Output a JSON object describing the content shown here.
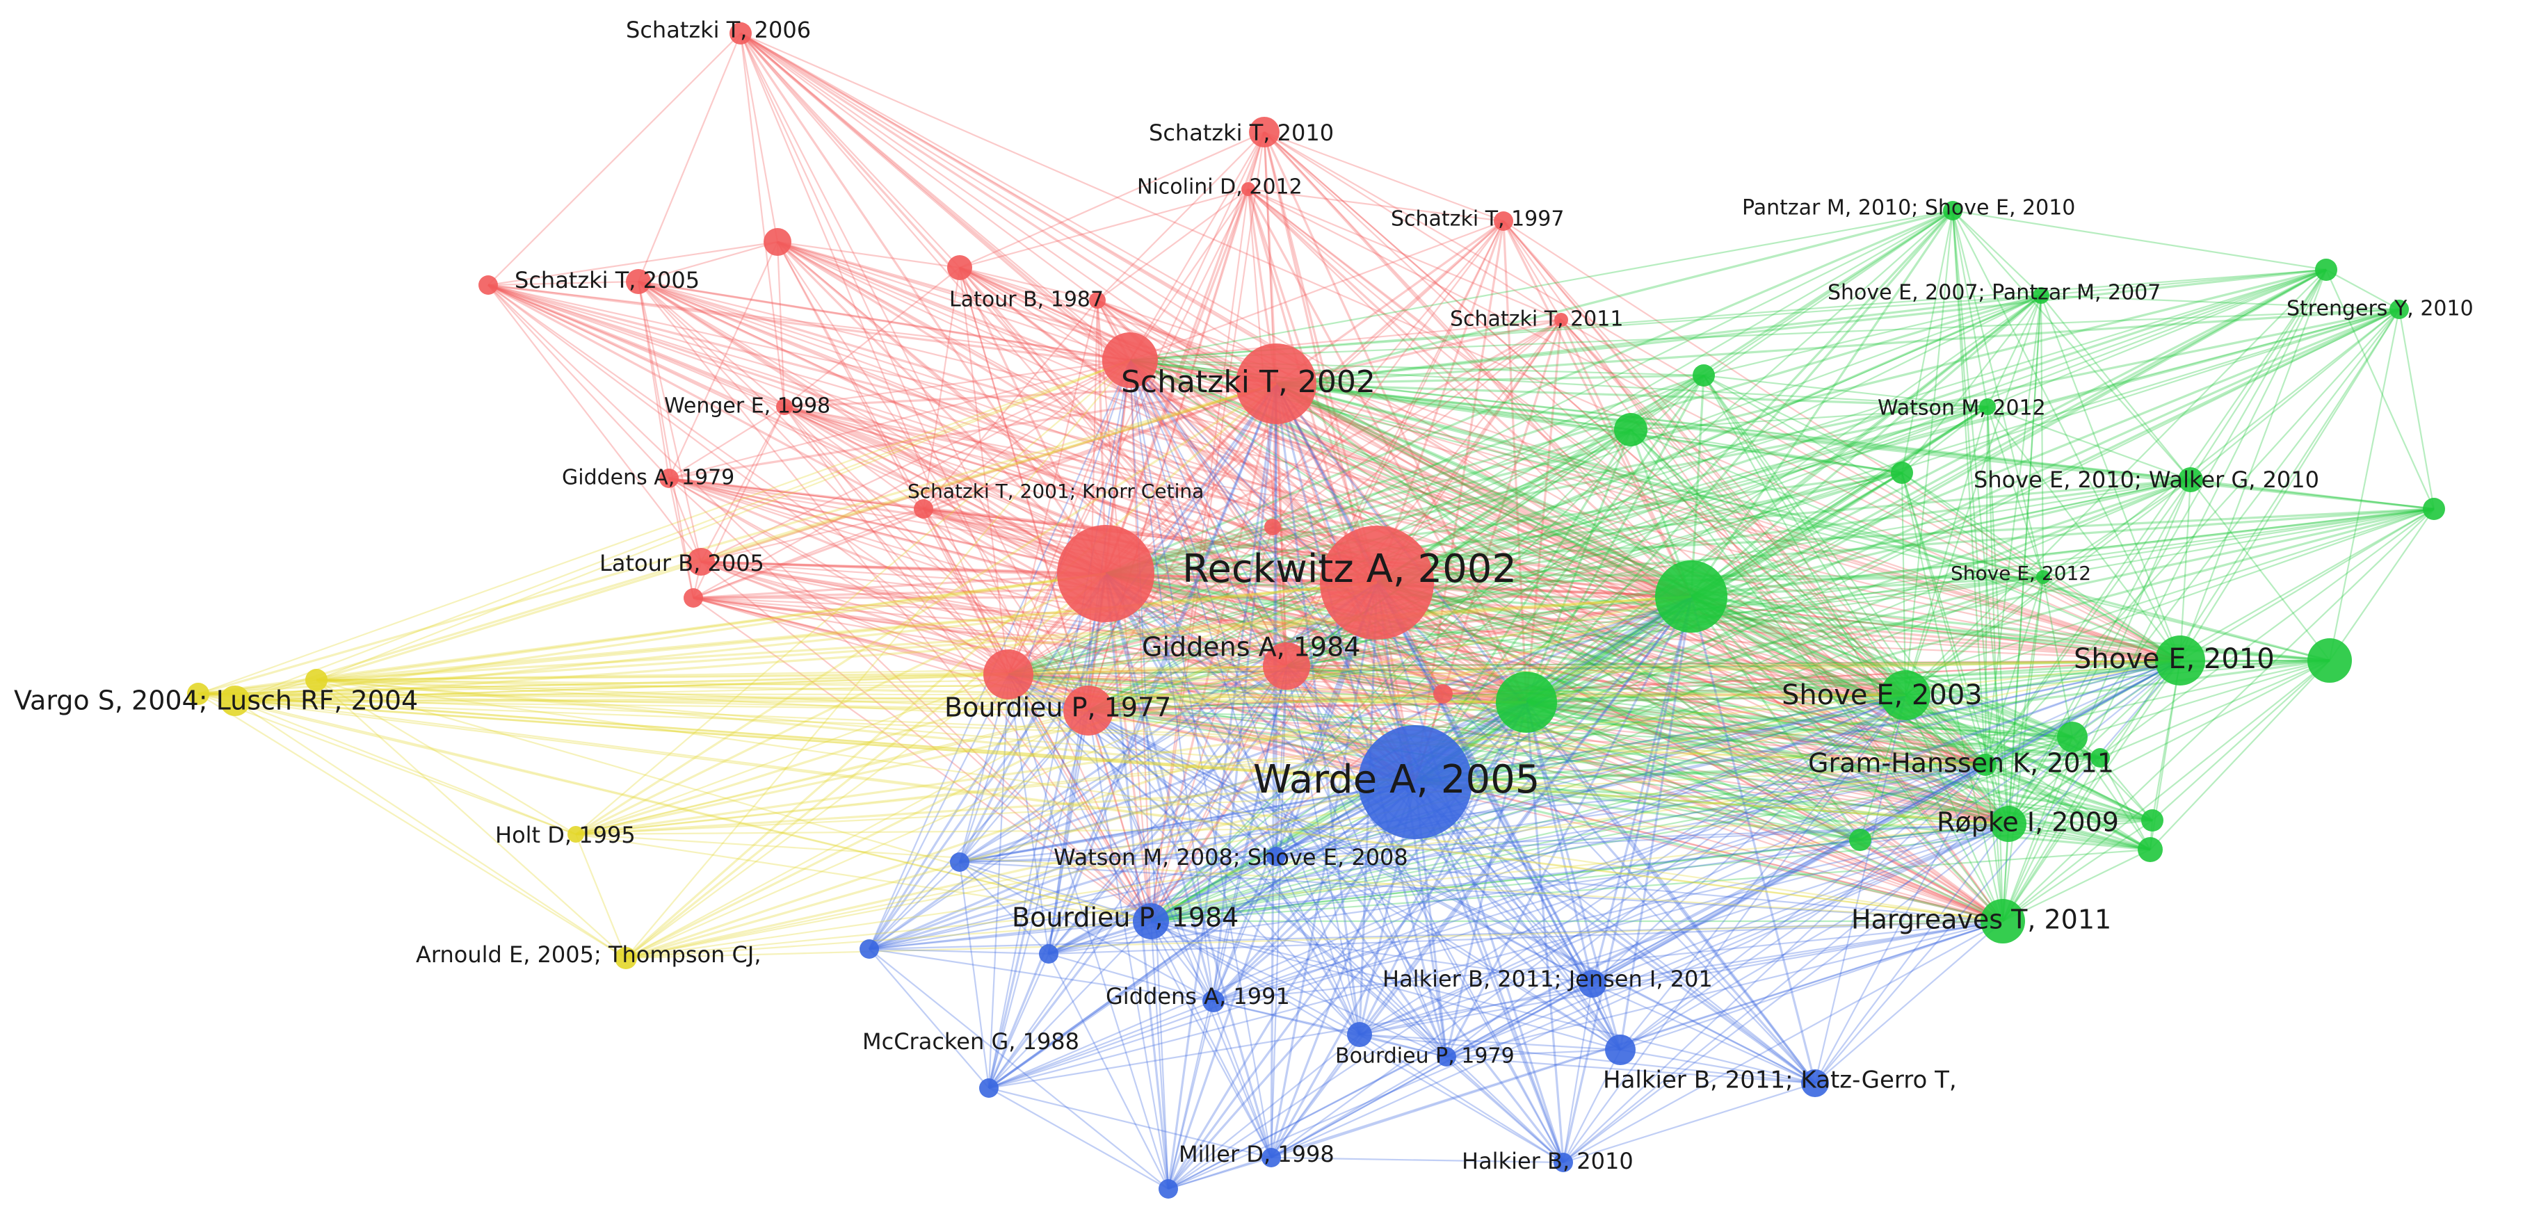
{
  "colors": {
    "red": "#f25b5b",
    "green": "#1fc83c",
    "blue": "#3a67e0",
    "yellow": "#e3d72a"
  },
  "nodes": [
    {
      "id": "r1",
      "label": "Reckwitz A, 2002",
      "cluster": "red"
    },
    {
      "id": "r2",
      "label": "Schatzki T, 2002",
      "cluster": "red"
    },
    {
      "id": "r3",
      "label": "Giddens A, 1984",
      "cluster": "red"
    },
    {
      "id": "r4",
      "label": "Bourdieu P, 1977",
      "cluster": "red"
    },
    {
      "id": "r5",
      "label": "Schatzki T, 2006",
      "cluster": "red"
    },
    {
      "id": "r6",
      "label": "Schatzki T, 2010",
      "cluster": "red"
    },
    {
      "id": "r7",
      "label": "Nicolini D, 2012",
      "cluster": "red"
    },
    {
      "id": "r8",
      "label": "Schatzki T, 1997",
      "cluster": "red"
    },
    {
      "id": "r9",
      "label": "Schatzki T, 2005",
      "cluster": "red"
    },
    {
      "id": "r10",
      "label": "Latour B, 1987",
      "cluster": "red"
    },
    {
      "id": "r11",
      "label": "Schatzki T, 2011",
      "cluster": "red"
    },
    {
      "id": "r12",
      "label": "Wenger E, 1998",
      "cluster": "red"
    },
    {
      "id": "r13",
      "label": "Giddens A, 1979",
      "cluster": "red"
    },
    {
      "id": "r14",
      "label": "Schatzki T, 2001; Knorr Cetina",
      "cluster": "red"
    },
    {
      "id": "r15",
      "label": "Latour B, 2005",
      "cluster": "red"
    },
    {
      "id": "r16",
      "label": "",
      "cluster": "red"
    },
    {
      "id": "r17",
      "label": "",
      "cluster": "red"
    },
    {
      "id": "r18",
      "label": "",
      "cluster": "red"
    },
    {
      "id": "r19",
      "label": "",
      "cluster": "red"
    },
    {
      "id": "r20",
      "label": "",
      "cluster": "red"
    },
    {
      "id": "r21",
      "label": "",
      "cluster": "red"
    },
    {
      "id": "r22",
      "label": "",
      "cluster": "red"
    },
    {
      "id": "g1",
      "label": "Pantzar M, 2010; Shove E, 2010",
      "cluster": "green"
    },
    {
      "id": "g2",
      "label": "Shove E, 2007; Pantzar M, 2007",
      "cluster": "green"
    },
    {
      "id": "g3",
      "label": "Strengers Y, 2010",
      "cluster": "green"
    },
    {
      "id": "g4",
      "label": "Watson M, 2012",
      "cluster": "green"
    },
    {
      "id": "g5",
      "label": "Shove E, 2010; Walker G, 2010",
      "cluster": "green"
    },
    {
      "id": "g6",
      "label": "Shove E, 2012",
      "cluster": "green"
    },
    {
      "id": "g7",
      "label": "Shove E, 2010",
      "cluster": "green"
    },
    {
      "id": "g8",
      "label": "Shove E, 2003",
      "cluster": "green"
    },
    {
      "id": "g9",
      "label": "Gram-Hanssen K, 2011",
      "cluster": "green"
    },
    {
      "id": "g10",
      "label": "Røpke I, 2009",
      "cluster": "green"
    },
    {
      "id": "g11",
      "label": "Hargreaves T, 2011",
      "cluster": "green"
    },
    {
      "id": "g12",
      "label": "",
      "cluster": "green"
    },
    {
      "id": "g13",
      "label": "",
      "cluster": "green"
    },
    {
      "id": "g14",
      "label": "",
      "cluster": "green"
    },
    {
      "id": "g15",
      "label": "",
      "cluster": "green"
    },
    {
      "id": "g16",
      "label": "",
      "cluster": "green"
    },
    {
      "id": "g17",
      "label": "",
      "cluster": "green"
    },
    {
      "id": "g18",
      "label": "",
      "cluster": "green"
    },
    {
      "id": "g19",
      "label": "",
      "cluster": "green"
    },
    {
      "id": "g20",
      "label": "",
      "cluster": "green"
    },
    {
      "id": "b1",
      "label": "Warde A, 2005",
      "cluster": "blue"
    },
    {
      "id": "b2",
      "label": "Watson M, 2008; Shove E, 2008",
      "cluster": "blue"
    },
    {
      "id": "b3",
      "label": "Bourdieu P, 1984",
      "cluster": "blue"
    },
    {
      "id": "b4",
      "label": "Giddens A, 1991",
      "cluster": "blue"
    },
    {
      "id": "b5",
      "label": "Halkier B, 2011; Jensen I, 201",
      "cluster": "blue"
    },
    {
      "id": "b6",
      "label": "McCracken G, 1988",
      "cluster": "blue"
    },
    {
      "id": "b7",
      "label": "Bourdieu P, 1979",
      "cluster": "blue"
    },
    {
      "id": "b8",
      "label": "Halkier B, 2011; Katz-Gerro T,",
      "cluster": "blue"
    },
    {
      "id": "b9",
      "label": "Miller D, 1998",
      "cluster": "blue"
    },
    {
      "id": "b10",
      "label": "Halkier B, 2010",
      "cluster": "blue"
    },
    {
      "id": "b11",
      "label": "",
      "cluster": "blue"
    },
    {
      "id": "b12",
      "label": "",
      "cluster": "blue"
    },
    {
      "id": "b13",
      "label": "",
      "cluster": "blue"
    },
    {
      "id": "b14",
      "label": "",
      "cluster": "blue"
    },
    {
      "id": "b15",
      "label": "",
      "cluster": "blue"
    },
    {
      "id": "y1",
      "label": "Vargo S, 2004; Lusch RF, 2004",
      "cluster": "yellow"
    },
    {
      "id": "y2",
      "label": "Holt D, 1995",
      "cluster": "yellow"
    },
    {
      "id": "y3",
      "label": "Arnould E, 2005; Thompson CJ,",
      "cluster": "yellow"
    },
    {
      "id": "y4",
      "label": "",
      "cluster": "yellow"
    }
  ]
}
